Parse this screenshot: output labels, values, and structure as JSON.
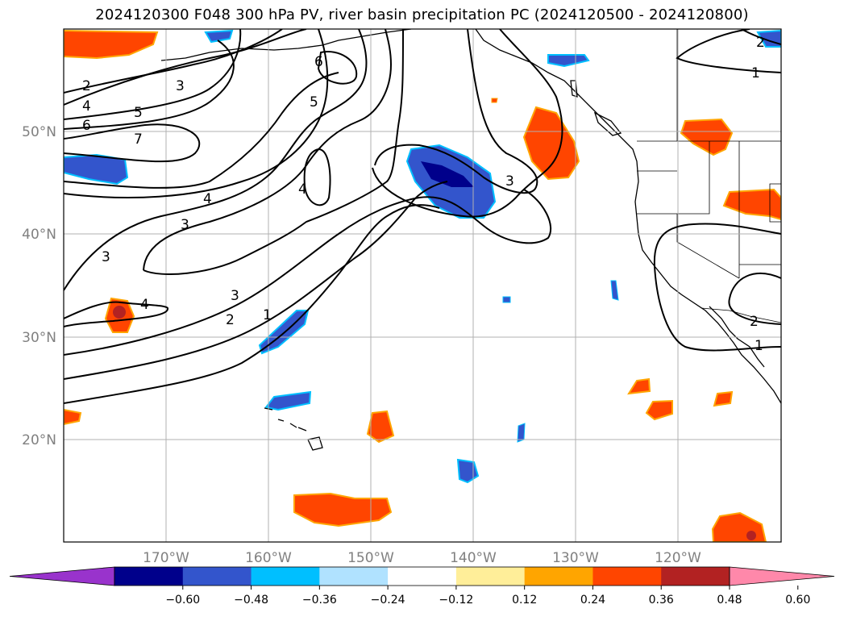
{
  "title": "2024120300 F048 300 hPa PV, river basin precipitation PC (2024120500 - 2024120800)",
  "map": {
    "lat_labels": [
      {
        "text": "50°N",
        "lat": 50
      },
      {
        "text": "40°N",
        "lat": 40
      },
      {
        "text": "30°N",
        "lat": 30
      },
      {
        "text": "20°N",
        "lat": 20
      }
    ],
    "lon_labels": [
      {
        "text": "170°W",
        "lon": -170
      },
      {
        "text": "160°W",
        "lon": -160
      },
      {
        "text": "150°W",
        "lon": -150
      },
      {
        "text": "140°W",
        "lon": -140
      },
      {
        "text": "130°W",
        "lon": -130
      },
      {
        "text": "120°W",
        "lon": -120
      }
    ],
    "extent": {
      "lon_min": -180,
      "lon_max": -110,
      "lat_min": 10,
      "lat_max": 60
    },
    "contour_labels": [
      "1",
      "2",
      "3",
      "4",
      "5",
      "6",
      "7"
    ]
  },
  "colorbar": {
    "colors": [
      "#9933cc",
      "#00008b",
      "#3355cc",
      "#00bfff",
      "#b0e2ff",
      "#ffffff",
      "#ffee99",
      "#ffa500",
      "#ff4500",
      "#b22222",
      "#ff88aa"
    ],
    "ticks": [
      "−0.60",
      "−0.48",
      "−0.36",
      "−0.24",
      "−0.12",
      "0.12",
      "0.24",
      "0.36",
      "0.48",
      "0.60"
    ]
  }
}
